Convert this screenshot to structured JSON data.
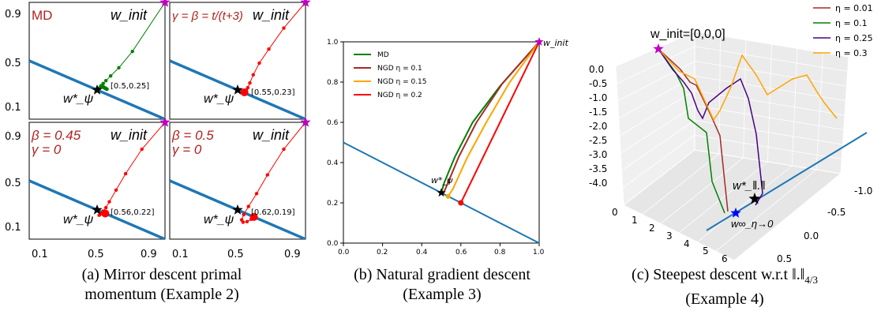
{
  "captions": {
    "a": [
      "(a) Mirror descent primal",
      "momentum (Example 2)"
    ],
    "b": [
      "(b) Natural gradient descent",
      "(Example 3)"
    ],
    "c": [
      "(c) Steepest descent w.r.t ‖.‖",
      "4/3",
      "(Example 4)"
    ]
  },
  "colors": {
    "constraint": "#1f77b4",
    "md_path": "#008000",
    "momentum_path": "#ff0000",
    "title_text": "#b22222",
    "init_star": "#c000c0",
    "optimum_star": "#000000",
    "limit_star": "#0000ff",
    "orange": "#ffa500",
    "darkred": "#a52a2a",
    "indigo": "#4b0082"
  },
  "chart_data": [
    {
      "type": "line",
      "id": "a1",
      "title": "MD",
      "corner_label": "w_init",
      "constraint": {
        "x": [
          0,
          1
        ],
        "y": [
          0.5,
          0
        ]
      },
      "series": [
        {
          "values_x": [
            1,
            0.76,
            0.66,
            0.6,
            0.565,
            0.545,
            0.53,
            0.52,
            0.512,
            0.506,
            0.502,
            0.5
          ],
          "values_y": [
            1,
            0.58,
            0.44,
            0.37,
            0.33,
            0.305,
            0.285,
            0.27,
            0.262,
            0.256,
            0.252,
            0.25
          ],
          "markers": [
            0.545,
            0.53,
            0.52,
            0.512,
            0.506,
            0.502
          ]
        }
      ],
      "optimum": {
        "x": 0.5,
        "y": 0.25,
        "label": "w*_ψ",
        "coord_label": "[0.5,0.25]"
      },
      "ticks": {
        "y": [
          "0.9",
          "0.5",
          "0.1"
        ],
        "x": []
      }
    },
    {
      "type": "line",
      "id": "a2",
      "title": "γ = β = t/(t+3)",
      "corner_label": "w_init",
      "constraint": {
        "x": [
          0,
          1
        ],
        "y": [
          0.5,
          0
        ]
      },
      "series": [
        {
          "values_x": [
            1,
            0.84,
            0.73,
            0.66,
            0.615,
            0.59,
            0.575,
            0.565,
            0.558,
            0.553,
            0.55
          ],
          "values_y": [
            1,
            0.78,
            0.6,
            0.48,
            0.38,
            0.31,
            0.27,
            0.25,
            0.24,
            0.233,
            0.23
          ]
        }
      ],
      "optimum": {
        "x": 0.5,
        "y": 0.25,
        "label": "w*_ψ",
        "coord_label": "[0.55,0.23]"
      },
      "ticks": {
        "y": [],
        "x": []
      }
    },
    {
      "type": "line",
      "id": "a3",
      "title": "β = 0.45",
      "subtitle": "γ = 0",
      "corner_label": "w_init",
      "constraint": {
        "x": [
          0,
          1
        ],
        "y": [
          0.5,
          0
        ]
      },
      "series": [
        {
          "values_x": [
            1,
            0.83,
            0.71,
            0.64,
            0.59,
            0.565,
            0.545,
            0.53,
            0.52,
            0.515,
            0.56
          ],
          "values_y": [
            1,
            0.77,
            0.56,
            0.42,
            0.32,
            0.27,
            0.24,
            0.22,
            0.21,
            0.205,
            0.22
          ]
        }
      ],
      "optimum": {
        "x": 0.5,
        "y": 0.25,
        "label": "w*_ψ",
        "coord_label": "[0.56,0.22]"
      },
      "ticks": {
        "y": [
          "0.9",
          "0.5",
          "0.1"
        ],
        "x": [
          "0.1",
          "0.5",
          "0.9"
        ]
      }
    },
    {
      "type": "line",
      "id": "a4",
      "title": "β = 0.5",
      "subtitle": "γ = 0",
      "corner_label": "w_init",
      "constraint": {
        "x": [
          0,
          1
        ],
        "y": [
          0.5,
          0
        ]
      },
      "series": [
        {
          "values_x": [
            1,
            0.84,
            0.72,
            0.64,
            0.58,
            0.545,
            0.53,
            0.54,
            0.57,
            0.6,
            0.62
          ],
          "values_y": [
            1,
            0.77,
            0.55,
            0.39,
            0.28,
            0.21,
            0.165,
            0.145,
            0.15,
            0.17,
            0.19
          ]
        }
      ],
      "optimum": {
        "x": 0.5,
        "y": 0.25,
        "label": "w*_ψ",
        "coord_label": "[0.62,0.19]"
      },
      "ticks": {
        "y": [],
        "x": [
          "0.1",
          "0.5",
          "0.9"
        ]
      }
    },
    {
      "type": "line",
      "id": "b",
      "corner_label": "w_init",
      "xlim": [
        0,
        1
      ],
      "ylim": [
        0,
        1
      ],
      "ticks": {
        "x": [
          "0.0",
          "0.2",
          "0.4",
          "0.6",
          "0.8",
          "1.0"
        ],
        "y": [
          "0.0",
          "0.2",
          "0.4",
          "0.6",
          "0.8",
          "1.0"
        ]
      },
      "constraint": {
        "x": [
          0,
          1
        ],
        "y": [
          0.5,
          0
        ]
      },
      "optimum": {
        "x": 0.5,
        "y": 0.25,
        "label": "w*_ψ"
      },
      "series": [
        {
          "name": "MD",
          "color": "#008000",
          "x": [
            1,
            0.8,
            0.66,
            0.57,
            0.515,
            0.5
          ],
          "y": [
            1,
            0.78,
            0.6,
            0.43,
            0.3,
            0.25
          ]
        },
        {
          "name": "NGD η = 0.1",
          "color": "#a52a2a",
          "x": [
            1,
            0.81,
            0.68,
            0.59,
            0.53,
            0.51
          ],
          "y": [
            1,
            0.79,
            0.6,
            0.43,
            0.29,
            0.245
          ]
        },
        {
          "name": "NGD η = 0.15",
          "color": "#ffa500",
          "x": [
            1,
            0.85,
            0.73,
            0.63,
            0.56,
            0.535
          ],
          "y": [
            1,
            0.8,
            0.6,
            0.42,
            0.27,
            0.232
          ]
        },
        {
          "name": "NGD η = 0.2",
          "color": "#ff0000",
          "x": [
            1,
            0.6
          ],
          "y": [
            1,
            0.2
          ],
          "end_marker": true
        }
      ]
    },
    {
      "type": "line",
      "id": "c",
      "init_label": "w_init=[0,0,0]",
      "optimum_label": "w*_‖.‖",
      "limit_label": "w∞_η→0",
      "z_ticks": [
        "0.0",
        "-0.5",
        "-1.0",
        "-1.5",
        "-2.0",
        "-2.5",
        "-3.0",
        "-3.5",
        "-4.0"
      ],
      "x_ticks": [
        "0",
        "1",
        "2",
        "3",
        "4",
        "5",
        "6"
      ],
      "y_ticks": [
        "-1.0",
        "-0.5",
        "0.0",
        "0.5"
      ],
      "series": [
        {
          "name": "η = 0.01",
          "color": "#a52a2a"
        },
        {
          "name": "η = 0.1",
          "color": "#008000"
        },
        {
          "name": "η = 0.25",
          "color": "#4b0082"
        },
        {
          "name": "η = 0.3",
          "color": "#ffa500"
        }
      ]
    }
  ]
}
